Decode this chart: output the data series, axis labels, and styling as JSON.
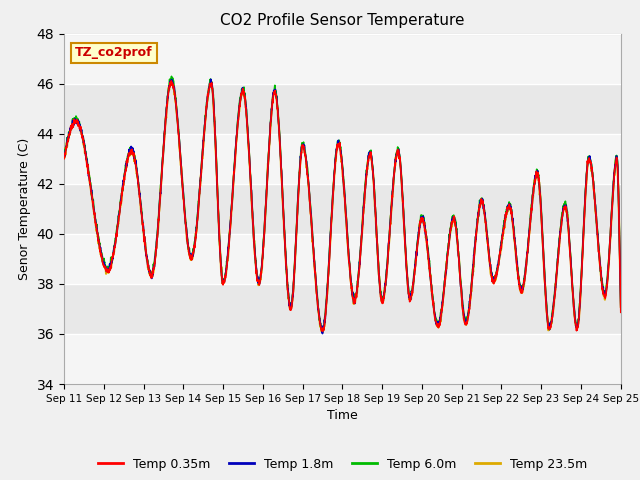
{
  "title": "CO2 Profile Sensor Temperature",
  "xlabel": "Time",
  "ylabel": "Senor Temperature (C)",
  "ylim": [
    34,
    48
  ],
  "yticks": [
    34,
    36,
    38,
    40,
    42,
    44,
    46,
    48
  ],
  "legend_label": "TZ_co2prof",
  "series_labels": [
    "Temp 0.35m",
    "Temp 1.8m",
    "Temp 6.0m",
    "Temp 23.5m"
  ],
  "series_colors": [
    "#ff0000",
    "#0000bb",
    "#00bb00",
    "#ddaa00"
  ],
  "plot_bg_color": "#e8e8e8",
  "annotation_box_color": "#ffffcc",
  "annotation_text_color": "#cc0000",
  "annotation_border_color": "#cc8800",
  "band_color_light": "#e8e8e8",
  "band_color_white": "#f5f5f5",
  "figsize": [
    6.4,
    4.8
  ],
  "dpi": 100
}
